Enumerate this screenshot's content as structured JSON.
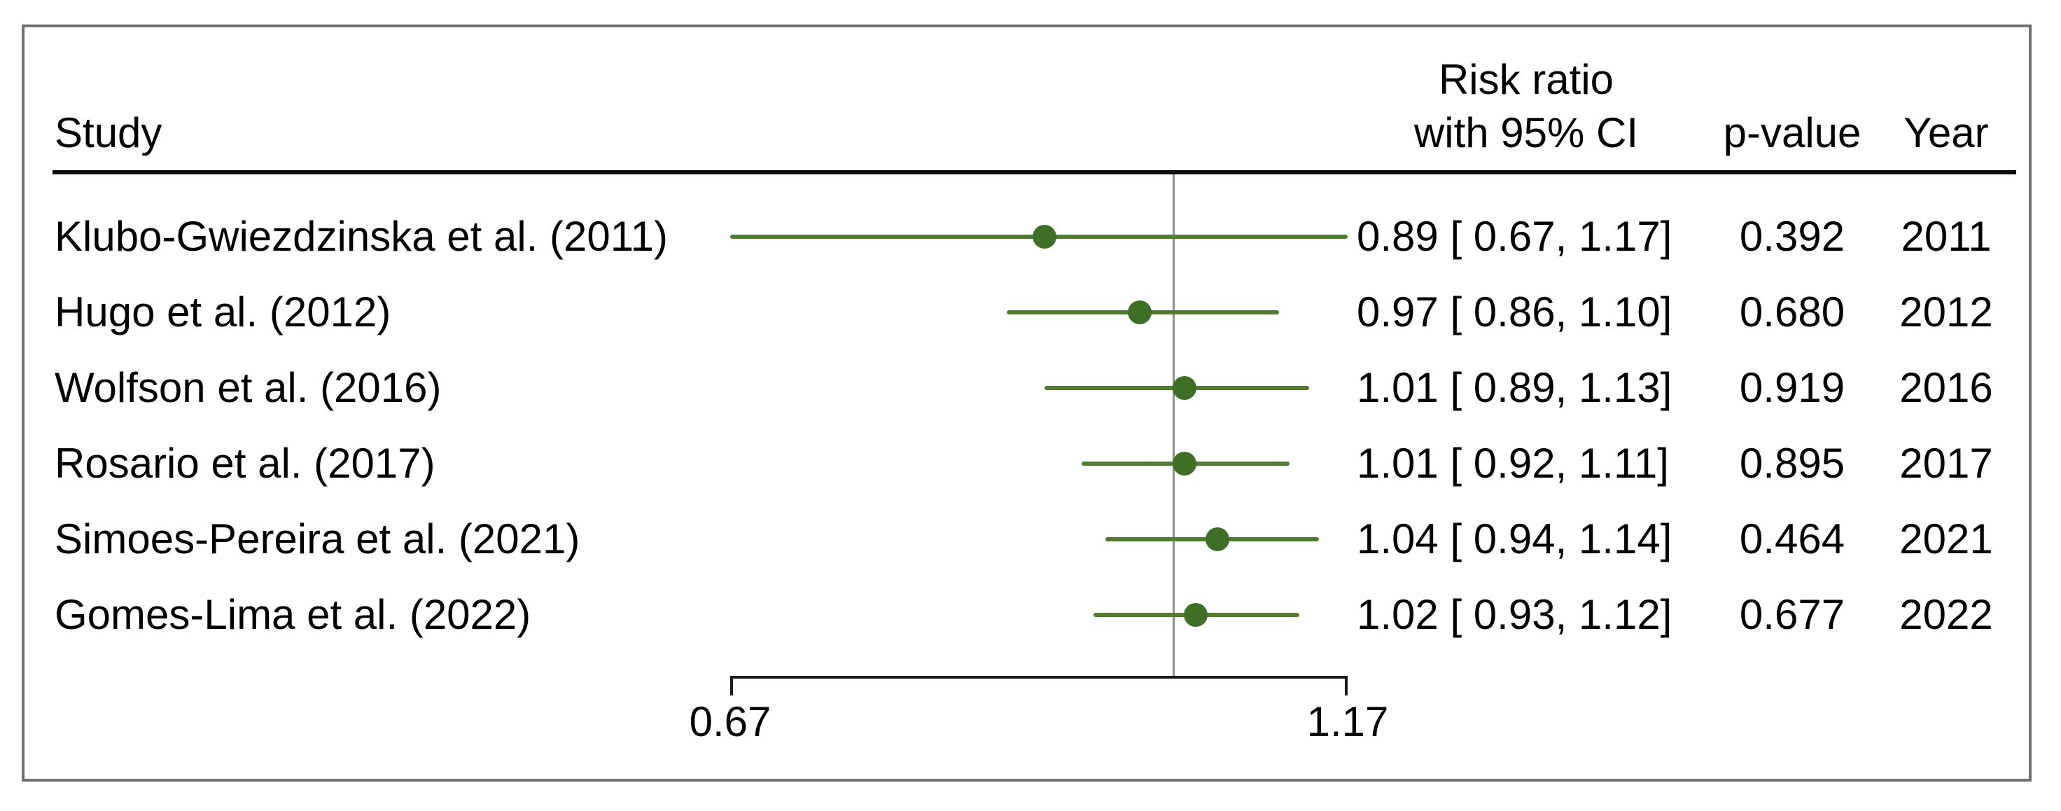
{
  "figure": {
    "columns": {
      "study": "Study",
      "rr_header_line1": "Risk ratio",
      "rr_header_line2": "with 95% CI",
      "p_value": "p-value",
      "year": "Year"
    }
  },
  "chart_data": {
    "type": "forest",
    "xscale": "log",
    "axis": {
      "min": 0.67,
      "max": 1.17,
      "tick_labels": [
        "0.67",
        "1.17"
      ],
      "reference_line": 1.0
    },
    "legend": "none",
    "grid": "off",
    "studies": [
      {
        "label": "Klubo-Gwiezdzinska et al. (2011)",
        "rr": 0.89,
        "ci_low": 0.67,
        "ci_high": 1.17,
        "rr_text": "0.89 [ 0.67, 1.17]",
        "p_value": "0.392",
        "year": "2011"
      },
      {
        "label": "Hugo et al. (2012)",
        "rr": 0.97,
        "ci_low": 0.86,
        "ci_high": 1.1,
        "rr_text": "0.97 [ 0.86, 1.10]",
        "p_value": "0.680",
        "year": "2012"
      },
      {
        "label": "Wolfson et al. (2016)",
        "rr": 1.01,
        "ci_low": 0.89,
        "ci_high": 1.13,
        "rr_text": "1.01 [ 0.89, 1.13]",
        "p_value": "0.919",
        "year": "2016"
      },
      {
        "label": "Rosario et al. (2017)",
        "rr": 1.01,
        "ci_low": 0.92,
        "ci_high": 1.11,
        "rr_text": "1.01 [ 0.92, 1.11]",
        "p_value": "0.895",
        "year": "2017"
      },
      {
        "label": "Simoes-Pereira et al. (2021)",
        "rr": 1.04,
        "ci_low": 0.94,
        "ci_high": 1.14,
        "rr_text": "1.04 [ 0.94, 1.14]",
        "p_value": "0.464",
        "year": "2021"
      },
      {
        "label": "Gomes-Lima et al. (2022)",
        "rr": 1.02,
        "ci_low": 0.93,
        "ci_high": 1.12,
        "rr_text": "1.02 [ 0.93, 1.12]",
        "p_value": "0.677",
        "year": "2022"
      }
    ],
    "colors": {
      "ci_line": "#4f7c30",
      "marker": "#3f6e26",
      "reference_line": "#8f8f8f",
      "axis": "#1a1a1a"
    }
  }
}
